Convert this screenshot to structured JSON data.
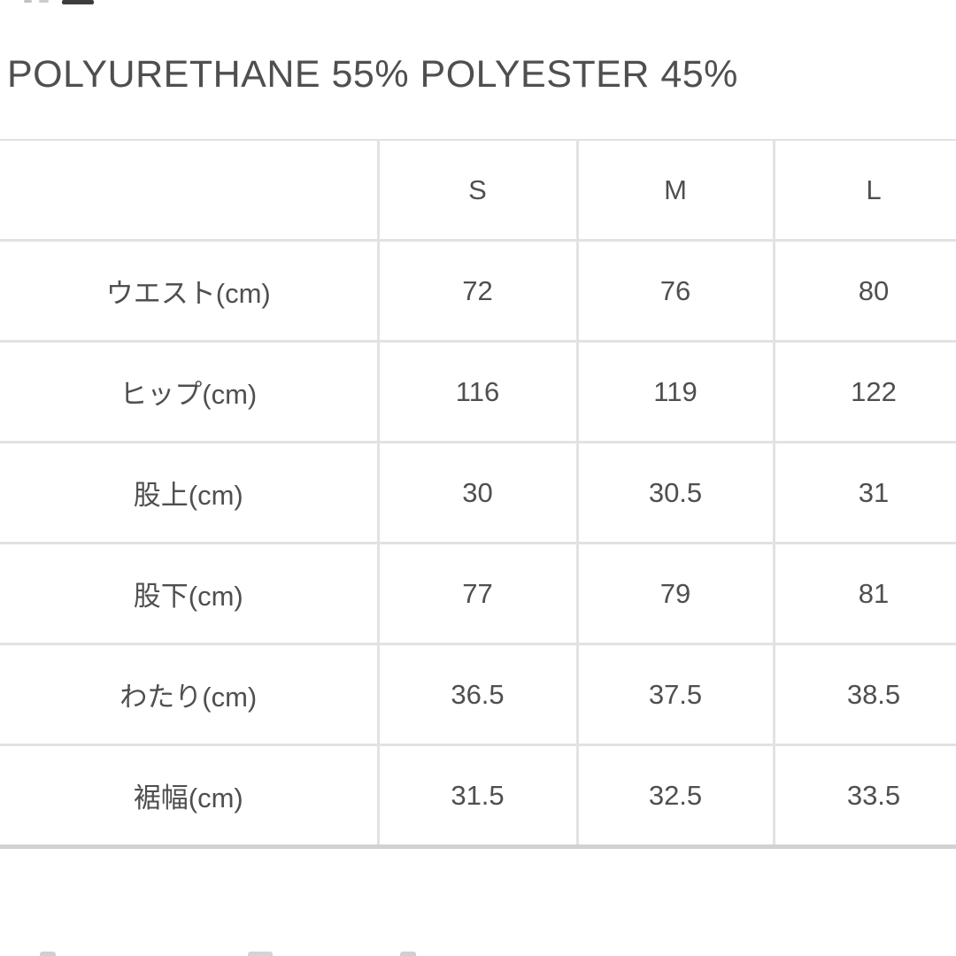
{
  "material": {
    "text": "POLYURETHANE 55% POLYESTER 45%"
  },
  "size_table": {
    "columns": [
      "",
      "S",
      "M",
      "L"
    ],
    "rows": [
      {
        "label": "ウエスト(cm)",
        "values": [
          "72",
          "76",
          "80"
        ]
      },
      {
        "label": "ヒップ(cm)",
        "values": [
          "116",
          "119",
          "122"
        ]
      },
      {
        "label": "股上(cm)",
        "values": [
          "30",
          "30.5",
          "31"
        ]
      },
      {
        "label": "股下(cm)",
        "values": [
          "77",
          "79",
          "81"
        ]
      },
      {
        "label": "わたり(cm)",
        "values": [
          "36.5",
          "37.5",
          "38.5"
        ]
      },
      {
        "label": "裾幅(cm)",
        "values": [
          "31.5",
          "32.5",
          "33.5"
        ]
      }
    ]
  },
  "colors": {
    "text": "#4f4f4f",
    "border": "#e2e2e2",
    "border_bottom": "#d2d2d2",
    "background": "#ffffff"
  }
}
